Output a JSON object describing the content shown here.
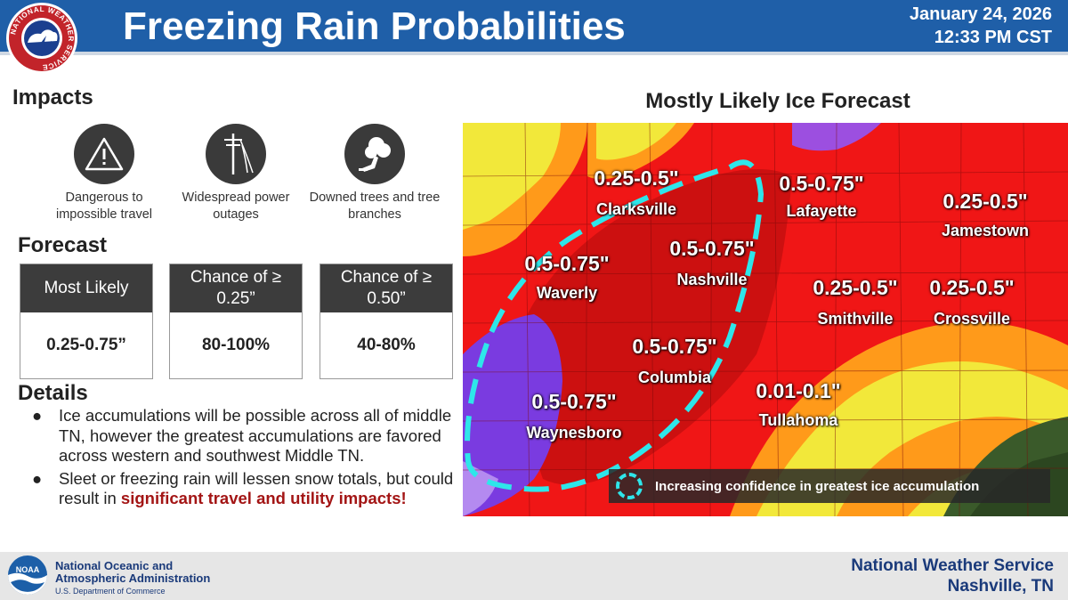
{
  "header": {
    "logo_text": "NATIONAL WEATHER SERVICE",
    "title": "Freezing Rain Probabilities",
    "date": "January 24, 2026",
    "time": "12:33 PM CST"
  },
  "impacts": {
    "heading": "Impacts",
    "items": [
      {
        "icon": "warning-triangle-icon",
        "label": "Dangerous to impossible travel"
      },
      {
        "icon": "power-pole-icon",
        "label": "Widespread power outages"
      },
      {
        "icon": "downed-tree-icon",
        "label": "Downed trees and tree branches"
      }
    ]
  },
  "forecast": {
    "heading": "Forecast",
    "boxes": [
      {
        "header": "Most Likely",
        "value": "0.25-0.75”"
      },
      {
        "header": "Chance of ≥ 0.25”",
        "value": "80-100%"
      },
      {
        "header": "Chance of ≥ 0.50”",
        "value": "40-80%"
      }
    ]
  },
  "details": {
    "heading": "Details",
    "bullet": "●",
    "item1": "Ice accumulations will be possible across all of middle TN, however the greatest accumulations are favored across western and southwest Middle TN.",
    "item2_start": "Sleet or freezing rain will lessen snow totals, but could result in ",
    "item2_highlight": "significant travel and utility impacts!"
  },
  "map": {
    "title": "Mostly Likely Ice Forecast",
    "labels": [
      {
        "amount": "0.25-0.5\"",
        "city": "Clarksville"
      },
      {
        "amount": "0.5-0.75\"",
        "city": "Lafayette"
      },
      {
        "amount": "0.25-0.5\"",
        "city": "Jamestown"
      },
      {
        "amount": "0.5-0.75\"",
        "city": "Waverly"
      },
      {
        "amount": "0.5-0.75\"",
        "city": "Nashville"
      },
      {
        "amount": "0.25-0.5\"",
        "city": "Smithville"
      },
      {
        "amount": "0.25-0.5\"",
        "city": "Crossville"
      },
      {
        "amount": "0.5-0.75\"",
        "city": "Columbia"
      },
      {
        "amount": "0.01-0.1\"",
        "city": "Tullahoma"
      },
      {
        "amount": "0.5-0.75\"",
        "city": "Waynesboro"
      }
    ],
    "legend": "Increasing confidence in greatest ice accumulation",
    "colors": {
      "red": "#f01616",
      "dark_red": "#c40e0e",
      "orange": "#ff9a1a",
      "yellow": "#f2e83a",
      "purple": "#7a3be0",
      "cyan": "#2ee6ea"
    }
  },
  "footer": {
    "noaa_logo_text": "NOAA",
    "org_line1": "National Oceanic and",
    "org_line2": "Atmospheric Administration",
    "dept": "U.S. Department of Commerce",
    "office_line1": "National Weather Service",
    "office_line2": "Nashville, TN"
  }
}
